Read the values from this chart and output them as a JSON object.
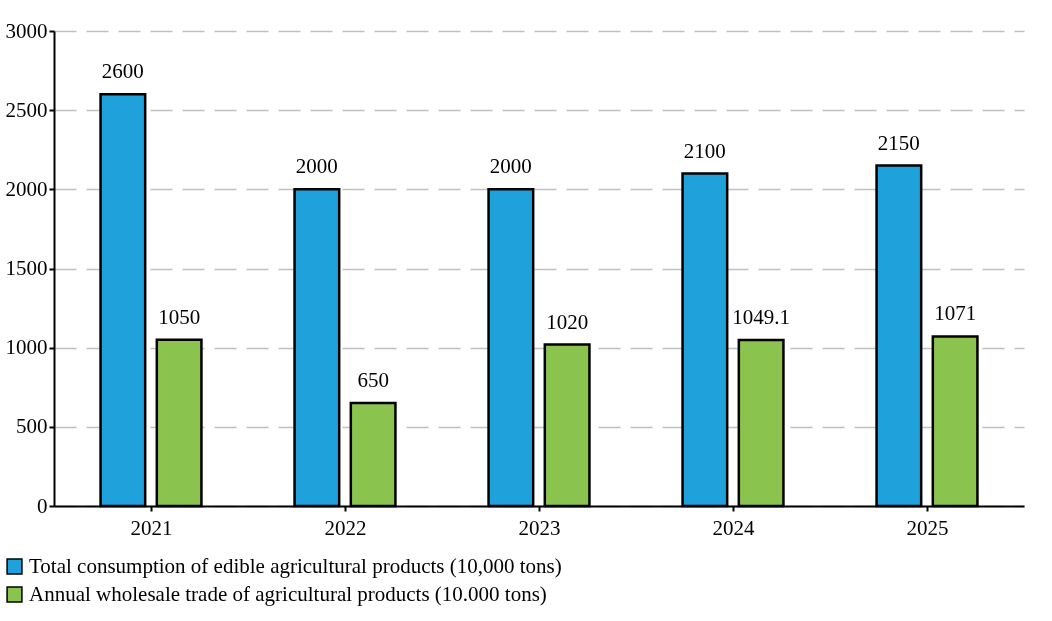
{
  "chart_data": {
    "type": "bar",
    "categories": [
      "2021",
      "2022",
      "2023",
      "2024",
      "2025"
    ],
    "series": [
      {
        "name": "Total consumption of edible agricultural products (10,000 tons)",
        "color": "#1fa2dc",
        "values": [
          2600,
          2000,
          2000,
          2100,
          2150
        ]
      },
      {
        "name": "Annual wholesale trade of agricultural products (10.000 tons)",
        "color": "#8bc34f",
        "values": [
          1050,
          650,
          1020,
          1049.1,
          1071
        ]
      }
    ],
    "ylim": [
      0,
      3000
    ],
    "yticks": [
      0,
      500,
      1000,
      1500,
      2000,
      2500,
      3000
    ],
    "grid": "y",
    "legend": "bottom",
    "data_labels": true
  }
}
